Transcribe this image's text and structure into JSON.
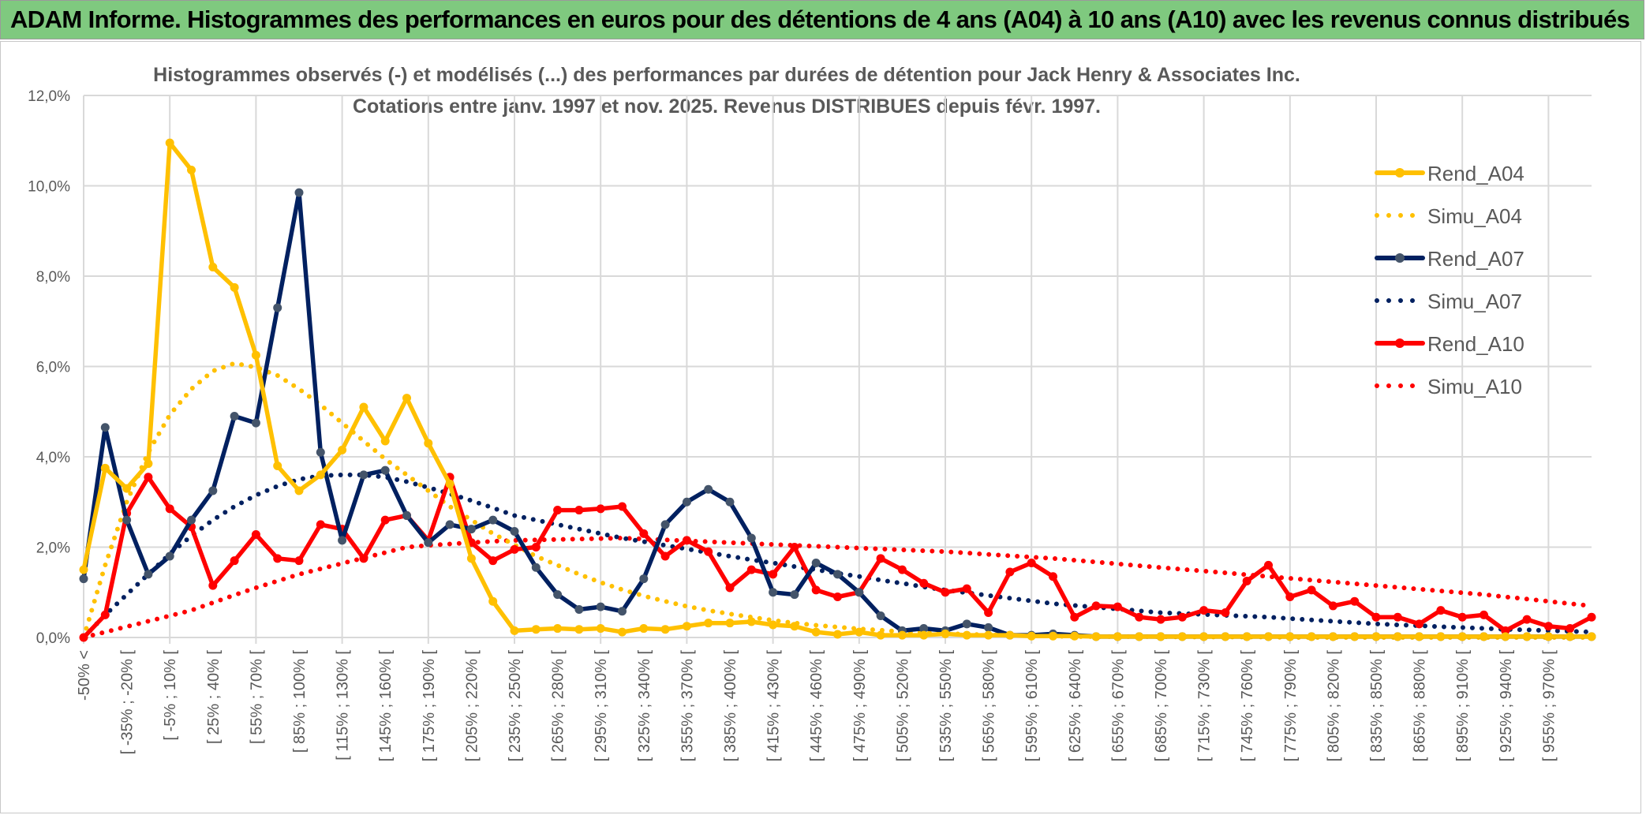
{
  "header": {
    "title": "ADAM Informe. Histogrammes des performances en euros pour des détentions de 4 ans (A04) à 10 ans (A10) avec les revenus connus distribués"
  },
  "colors": {
    "header_bg": "#7FC97F",
    "a04": "#FFC000",
    "a07": "#002060",
    "a07_marker": "#44546A",
    "a10": "#FF0000",
    "grid": "#D9D9D9",
    "text": "#595959"
  },
  "chart_data": {
    "type": "line",
    "title": "Histogrammes observés (-) et modélisés (...) des performances par durées de détention pour Jack Henry & Associates Inc.",
    "subtitle": "Cotations entre janv. 1997 et nov. 2025. Revenus DISTRIBUES depuis févr. 1997.",
    "xlabel": "",
    "ylabel": "",
    "ylim": [
      0,
      12
    ],
    "y_ticks": [
      "0,0%",
      "2,0%",
      "4,0%",
      "6,0%",
      "8,0%",
      "10,0%",
      "12,0%"
    ],
    "n_categories": 71,
    "x_tick_labels": [
      "-50% <",
      "[ -35% ; -20% [",
      "[ -5% ; 10% [",
      "[ 25% ; 40% [",
      "[ 55% ; 70% [",
      "[ 85% ; 100% [",
      "[ 115% ; 130% [",
      "[ 145% ; 160% [",
      "[ 175% ; 190% [",
      "[ 205% ; 220% [",
      "[ 235% ; 250% [",
      "[ 265% ; 280% [",
      "[ 295% ; 310% [",
      "[ 325% ; 340% [",
      "[ 355% ; 370% [",
      "[ 385% ; 400% [",
      "[ 415% ; 430% [",
      "[ 445% ; 460% [",
      "[ 475% ; 490% [",
      "[ 505% ; 520% [",
      "[ 535% ; 550% [",
      "[ 565% ; 580% [",
      "[ 595% ; 610% [",
      "[ 625% ; 640% [",
      "[ 655% ; 670% [",
      "[ 685% ; 700% [",
      "[ 715% ; 730% [",
      "[ 745% ; 760% [",
      "[ 775% ; 790% [",
      "[ 805% ; 820% [",
      "[ 835% ; 850% [",
      "[ 865% ; 880% [",
      "[ 895% ; 910% [",
      "[ 925% ; 940% [",
      "[ 955% ; 970% ["
    ],
    "grid": true,
    "legend": "right",
    "series": [
      {
        "name": "Rend_A04",
        "style": "solid",
        "color": "#FFC000",
        "values": [
          1.5,
          3.75,
          3.3,
          3.85,
          10.95,
          10.35,
          8.2,
          7.75,
          6.25,
          3.8,
          3.25,
          3.6,
          4.15,
          5.1,
          4.35,
          5.3,
          4.3,
          3.4,
          1.75,
          0.8,
          0.15,
          0.18,
          0.2,
          0.18,
          0.2,
          0.12,
          0.2,
          0.18,
          0.25,
          0.32,
          0.32,
          0.35,
          0.28,
          0.25,
          0.12,
          0.07,
          0.12,
          0.05,
          0.05,
          0.05,
          0.08,
          0.05,
          0.05,
          0.05,
          0.03,
          0.03,
          0.03,
          0.02,
          0.02,
          0.02,
          0.02,
          0.02,
          0.02,
          0.02,
          0.02,
          0.02,
          0.02,
          0.02,
          0.02,
          0.02,
          0.02,
          0.02,
          0.02,
          0.02,
          0.02,
          0.02,
          0.02,
          0.02,
          0.02,
          0.02,
          0.02
        ]
      },
      {
        "name": "Simu_A04",
        "style": "dotted",
        "color": "#FFC000",
        "values": [
          0,
          1.6,
          3.0,
          4.1,
          4.93,
          5.5,
          5.9,
          6.07,
          5.98,
          5.8,
          5.5,
          5.15,
          4.75,
          4.35,
          3.95,
          3.6,
          3.25,
          2.9,
          2.6,
          2.3,
          2.05,
          1.8,
          1.6,
          1.4,
          1.22,
          1.06,
          0.92,
          0.8,
          0.69,
          0.6,
          0.52,
          0.45,
          0.38,
          0.32,
          0.27,
          0.23,
          0.19,
          0.16,
          0.13,
          0.11,
          0.09,
          0.07,
          0.06,
          0.05,
          0.04,
          0.03,
          0.02,
          0.02,
          0.02,
          0.02,
          0.02,
          0.01,
          0.01,
          0.01,
          0.01,
          0.01,
          0,
          0,
          0,
          0,
          0,
          0,
          0,
          0,
          0,
          0,
          0,
          0,
          0,
          0,
          0
        ]
      },
      {
        "name": "Rend_A07",
        "style": "solid",
        "color": "#002060",
        "values": [
          1.3,
          4.65,
          2.6,
          1.4,
          1.8,
          2.6,
          3.25,
          4.9,
          4.75,
          7.3,
          9.85,
          4.1,
          2.15,
          3.6,
          3.7,
          2.7,
          2.1,
          2.5,
          2.4,
          2.6,
          2.35,
          1.55,
          0.95,
          0.62,
          0.68,
          0.58,
          1.3,
          2.5,
          3.0,
          3.28,
          3.0,
          2.2,
          1.0,
          0.95,
          1.65,
          1.4,
          1.0,
          0.48,
          0.15,
          0.2,
          0.15,
          0.3,
          0.22,
          0.05,
          0.05,
          0.08,
          0.05,
          0.02,
          0.02,
          0.02,
          0.02,
          0.02,
          0.02,
          0.02,
          0.02,
          0.02,
          0.02,
          0.02,
          0.02,
          0.02,
          0.02,
          0.02,
          0.02,
          0.02,
          0.02,
          0.02,
          0.02,
          0.02,
          0.02,
          0.02,
          0.02
        ]
      },
      {
        "name": "Simu_A07",
        "style": "dotted",
        "color": "#002060",
        "values": [
          0,
          0.5,
          0.95,
          1.4,
          1.85,
          2.25,
          2.6,
          2.9,
          3.15,
          3.35,
          3.5,
          3.58,
          3.6,
          3.6,
          3.55,
          3.45,
          3.32,
          3.18,
          3.03,
          2.87,
          2.7,
          2.6,
          2.5,
          2.4,
          2.3,
          2.2,
          2.12,
          2.04,
          1.96,
          1.88,
          1.8,
          1.72,
          1.65,
          1.57,
          1.5,
          1.42,
          1.35,
          1.27,
          1.2,
          1.12,
          1.05,
          0.99,
          0.93,
          0.87,
          0.81,
          0.75,
          0.71,
          0.67,
          0.63,
          0.59,
          0.55,
          0.53,
          0.51,
          0.49,
          0.47,
          0.45,
          0.42,
          0.39,
          0.36,
          0.33,
          0.3,
          0.28,
          0.26,
          0.24,
          0.22,
          0.2,
          0.18,
          0.17,
          0.15,
          0.14,
          0.12
        ]
      },
      {
        "name": "Rend_A10",
        "style": "solid",
        "color": "#FF0000",
        "values": [
          0,
          0.5,
          2.75,
          3.55,
          2.85,
          2.45,
          1.15,
          1.7,
          2.28,
          1.75,
          1.7,
          2.5,
          2.4,
          1.75,
          2.6,
          2.7,
          2.15,
          3.55,
          2.1,
          1.7,
          1.95,
          2.0,
          2.82,
          2.82,
          2.85,
          2.9,
          2.3,
          1.8,
          2.15,
          1.9,
          1.1,
          1.5,
          1.4,
          2.0,
          1.05,
          0.9,
          1.0,
          1.75,
          1.5,
          1.2,
          1.0,
          1.08,
          0.55,
          1.45,
          1.65,
          1.35,
          0.45,
          0.7,
          0.68,
          0.45,
          0.4,
          0.45,
          0.6,
          0.55,
          1.25,
          1.6,
          0.9,
          1.05,
          0.7,
          0.8,
          0.45,
          0.45,
          0.3,
          0.6,
          0.45,
          0.5,
          0.15,
          0.4,
          0.25,
          0.2,
          0.45
        ]
      },
      {
        "name": "Simu_A10",
        "style": "dotted",
        "color": "#FF0000",
        "values": [
          0,
          0.12,
          0.24,
          0.36,
          0.48,
          0.6,
          0.77,
          0.94,
          1.1,
          1.25,
          1.4,
          1.52,
          1.64,
          1.76,
          1.88,
          2.0,
          2.04,
          2.07,
          2.1,
          2.13,
          2.15,
          2.16,
          2.17,
          2.18,
          2.19,
          2.2,
          2.18,
          2.16,
          2.14,
          2.12,
          2.1,
          2.08,
          2.06,
          2.04,
          2.02,
          2.0,
          1.98,
          1.96,
          1.94,
          1.92,
          1.9,
          1.87,
          1.84,
          1.81,
          1.78,
          1.75,
          1.71,
          1.67,
          1.63,
          1.59,
          1.55,
          1.51,
          1.47,
          1.43,
          1.39,
          1.35,
          1.31,
          1.27,
          1.23,
          1.19,
          1.15,
          1.11,
          1.07,
          1.03,
          0.99,
          0.95,
          0.9,
          0.85,
          0.8,
          0.75,
          0.7
        ]
      }
    ]
  }
}
